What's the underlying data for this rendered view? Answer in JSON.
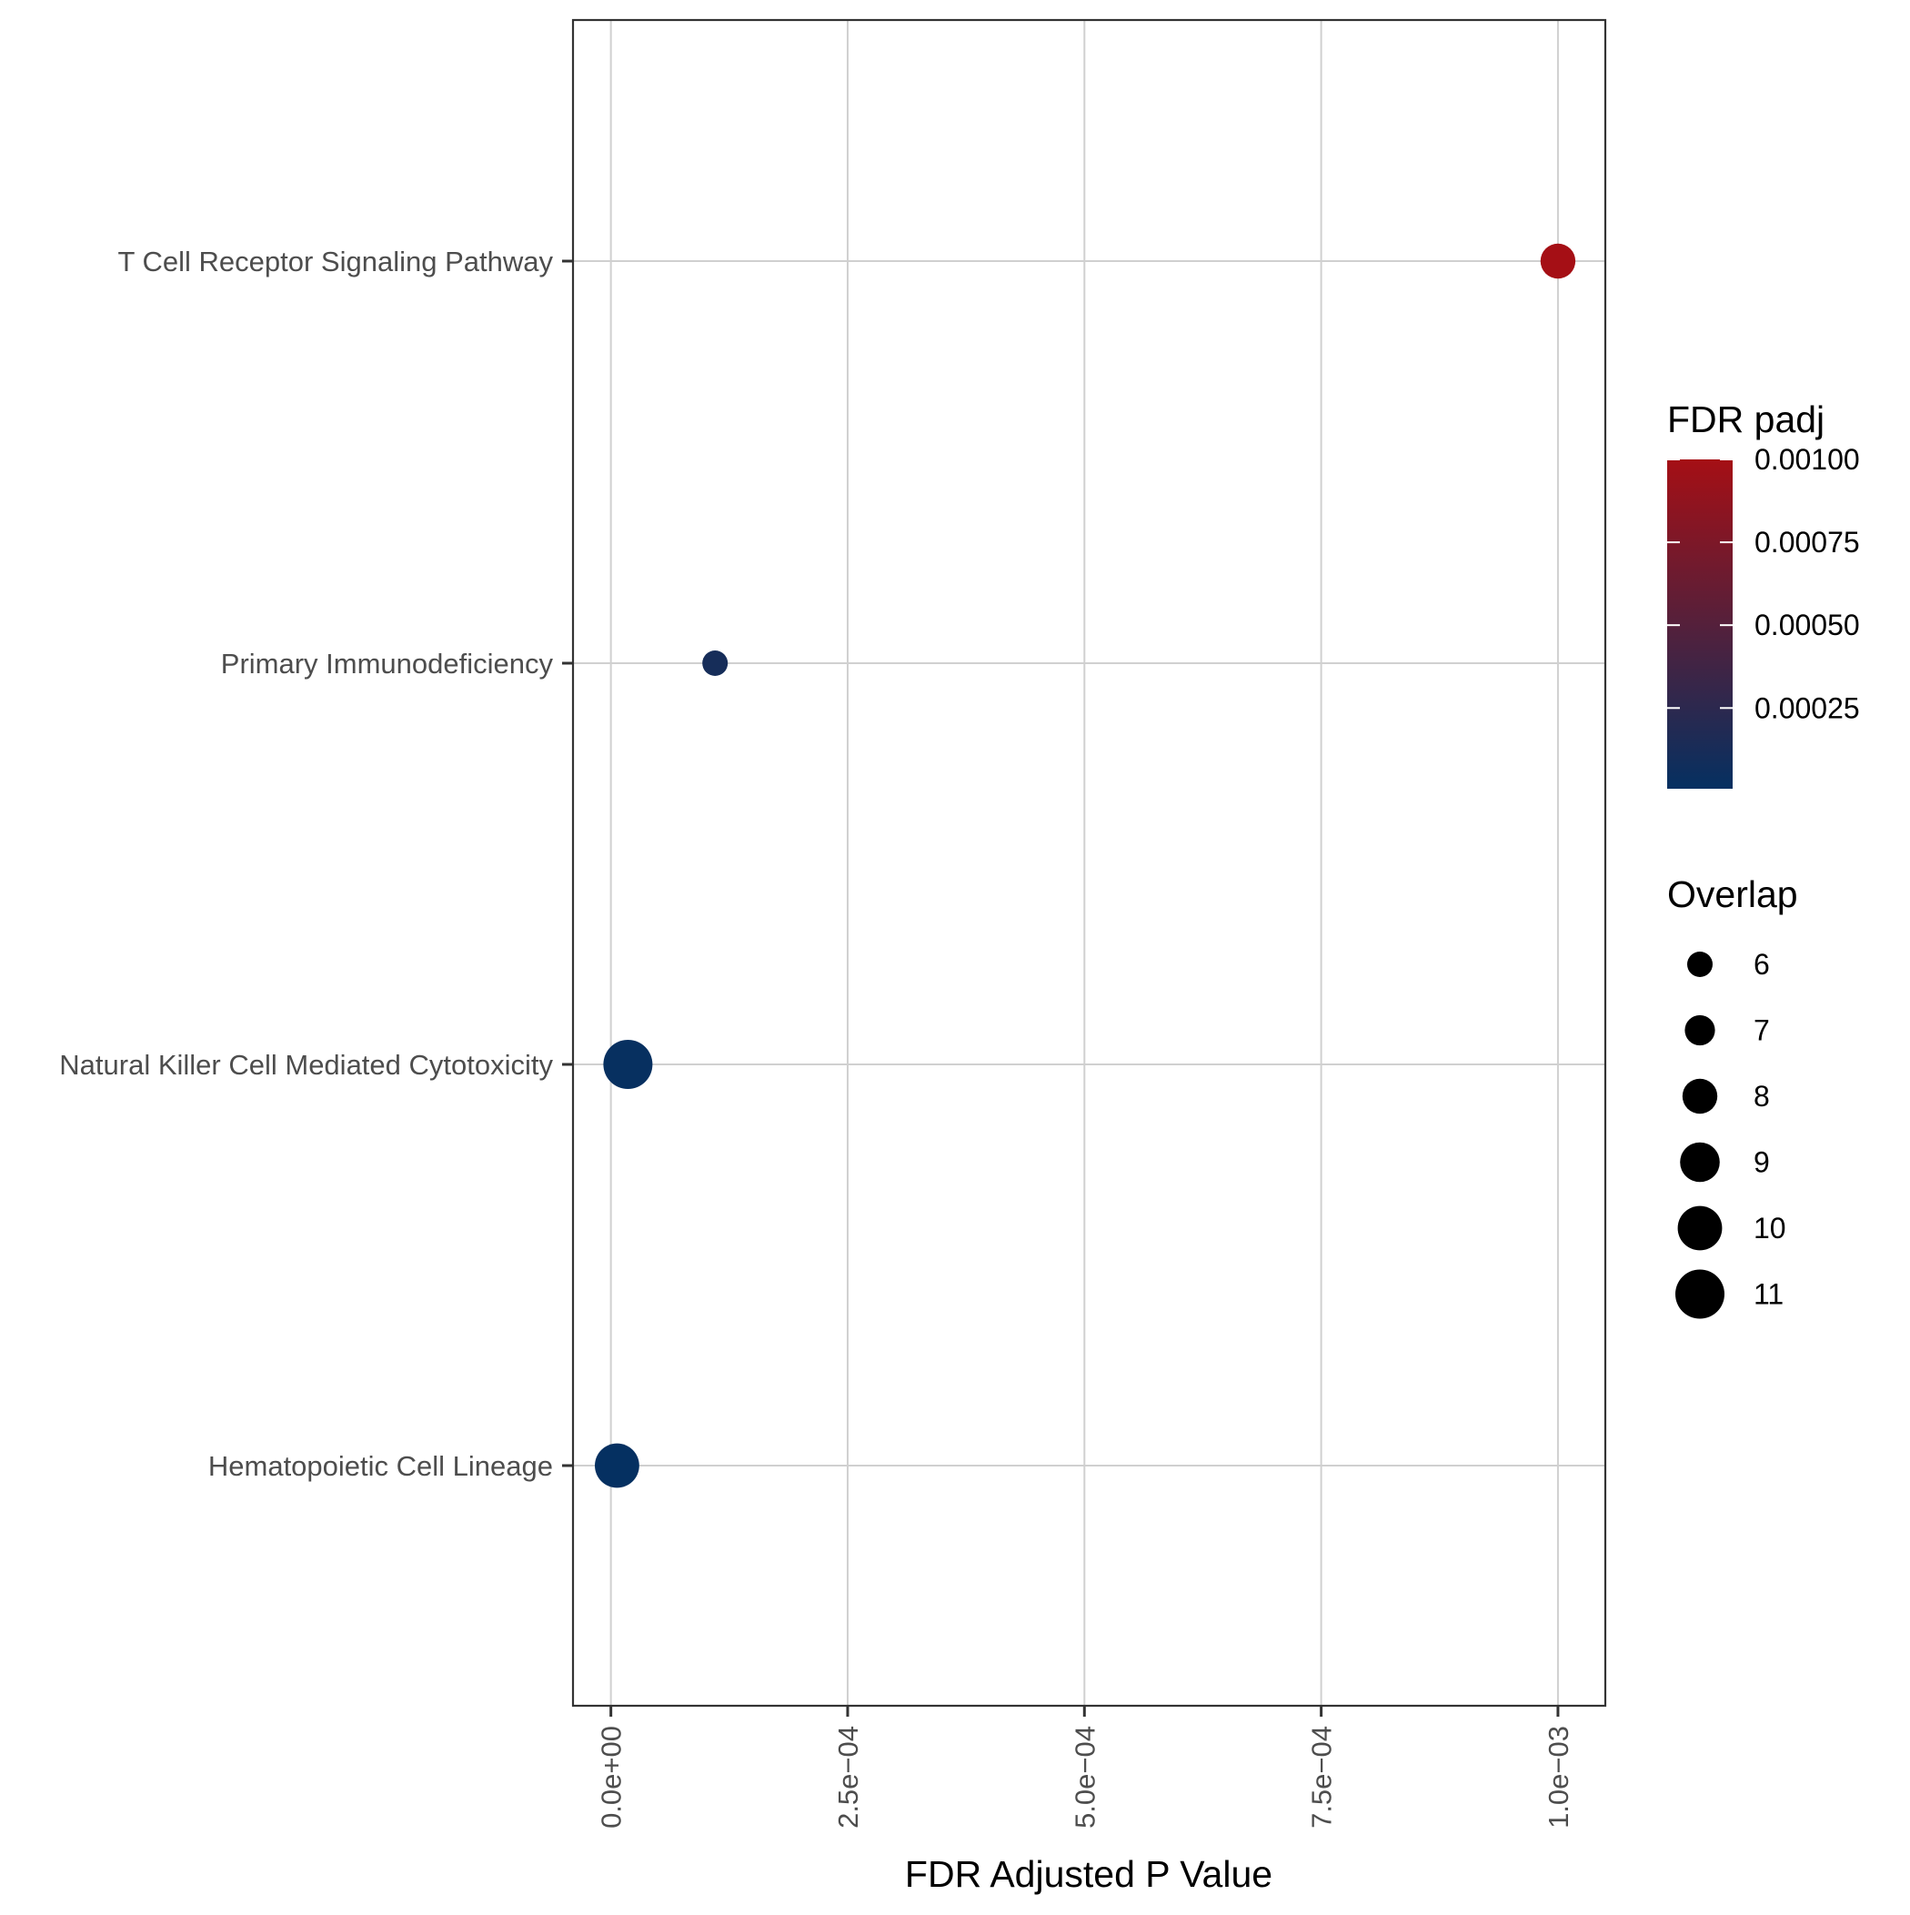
{
  "chart_data": {
    "type": "scatter",
    "title": "",
    "xlabel": "FDR Adjusted P Value",
    "ylabel": "",
    "xlim": [
      -4e-05,
      0.00105
    ],
    "x_ticks": [
      0,
      0.00025,
      0.0005,
      0.00075,
      0.001
    ],
    "x_tick_labels": [
      "0.0e+00",
      "2.5e−04",
      "5.0e−04",
      "7.5e−04",
      "1.0e−03"
    ],
    "categories": [
      "T Cell Receptor Signaling Pathway",
      "Primary Immunodeficiency",
      "Natural Killer Cell Mediated Cytotoxicity",
      "Hematopoietic Cell Lineage"
    ],
    "points": [
      {
        "category": "T Cell Receptor Signaling Pathway",
        "x": 0.001,
        "padj": 0.001,
        "overlap": 8
      },
      {
        "category": "Primary Immunodeficiency",
        "x": 0.00011,
        "padj": 0.00011,
        "overlap": 6
      },
      {
        "category": "Natural Killer Cell Mediated Cytotoxicity",
        "x": 1.8e-05,
        "padj": 1.8e-05,
        "overlap": 11
      },
      {
        "category": "Hematopoietic Cell Lineage",
        "x": 6.5e-06,
        "padj": 6.5e-06,
        "overlap": 10
      }
    ],
    "grid": true,
    "color_legend": {
      "title": "FDR padj",
      "low_color": "#053061",
      "high_color": "#a50f15",
      "min": 6.5e-06,
      "max": 0.001,
      "ticks": [
        0.00025,
        0.0005,
        0.00075,
        0.001
      ],
      "tick_labels": [
        "0.00025",
        "0.00050",
        "0.00075",
        "0.00100"
      ]
    },
    "size_legend": {
      "title": "Overlap",
      "values": [
        6,
        7,
        8,
        9,
        10,
        11
      ],
      "labels": [
        "6",
        "7",
        "8",
        "9",
        "10",
        "11"
      ],
      "color": "#000000"
    },
    "legend_position": "right"
  }
}
